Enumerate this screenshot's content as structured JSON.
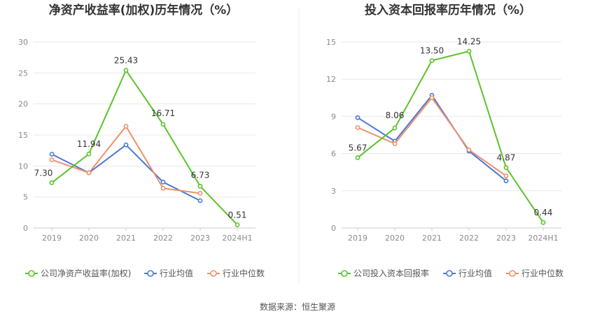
{
  "source_label": "数据来源：恒生聚源",
  "chart_data": [
    {
      "type": "line",
      "title": "净资产收益率(加权)历年情况（%）",
      "categories": [
        "2019",
        "2020",
        "2021",
        "2022",
        "2023",
        "2024H1"
      ],
      "ylim": [
        0,
        30
      ],
      "yticks": [
        0,
        5,
        10,
        15,
        20,
        25,
        30
      ],
      "grid": true,
      "legend_position": "bottom",
      "series": [
        {
          "name": "公司净资产收益率(加权)",
          "color": "#5cc22c",
          "values": [
            7.3,
            11.94,
            25.43,
            16.71,
            6.73,
            0.51
          ],
          "labels": [
            "7.30",
            "11.94",
            "25.43",
            "16.71",
            "6.73",
            "0.51"
          ]
        },
        {
          "name": "行业均值",
          "color": "#4a78d8",
          "values": [
            11.9,
            8.9,
            13.4,
            7.4,
            4.4,
            null
          ]
        },
        {
          "name": "行业中位数",
          "color": "#f0906a",
          "values": [
            11.0,
            8.9,
            16.4,
            6.4,
            5.6,
            null
          ]
        }
      ]
    },
    {
      "type": "line",
      "title": "投入资本回报率历年情况（%）",
      "categories": [
        "2019",
        "2020",
        "2021",
        "2022",
        "2023",
        "2024H1"
      ],
      "ylim": [
        0,
        15
      ],
      "yticks": [
        0,
        3,
        6,
        9,
        12,
        15
      ],
      "grid": true,
      "legend_position": "bottom",
      "series": [
        {
          "name": "公司投入资本回报率",
          "color": "#5cc22c",
          "values": [
            5.67,
            8.06,
            13.5,
            14.25,
            4.87,
            0.44
          ],
          "labels": [
            "5.67",
            "8.06",
            "13.50",
            "14.25",
            "4.87",
            "0.44"
          ]
        },
        {
          "name": "行业均值",
          "color": "#4a78d8",
          "values": [
            8.9,
            7.0,
            10.7,
            6.2,
            3.8,
            null
          ]
        },
        {
          "name": "行业中位数",
          "color": "#f0906a",
          "values": [
            8.1,
            6.8,
            10.5,
            6.3,
            4.2,
            null
          ]
        }
      ]
    }
  ]
}
